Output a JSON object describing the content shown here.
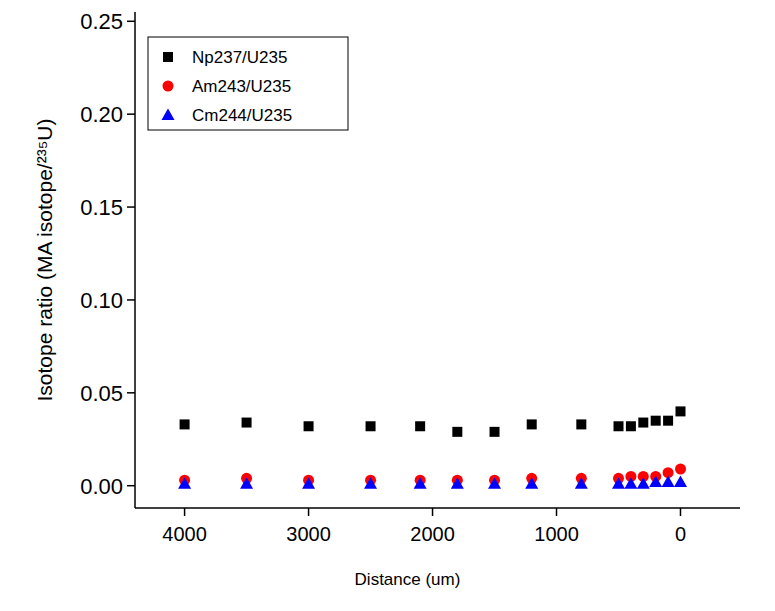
{
  "chart_data": {
    "type": "scatter",
    "x_label": "Distance (um)",
    "y_label": "Isotope ratio (MA isotope/²³⁵U)",
    "x": [
      4000,
      3500,
      3000,
      2500,
      2100,
      1800,
      1500,
      1200,
      800,
      500,
      400,
      300,
      200,
      100,
      0
    ],
    "series": [
      {
        "name": "Np237/U235",
        "color": "#000000",
        "marker": "square",
        "values": [
          0.033,
          0.034,
          0.032,
          0.032,
          0.032,
          0.029,
          0.029,
          0.033,
          0.033,
          0.032,
          0.032,
          0.034,
          0.035,
          0.035,
          0.04
        ]
      },
      {
        "name": "Am243/U235",
        "color": "#ff0000",
        "marker": "circle",
        "values": [
          0.003,
          0.004,
          0.003,
          0.003,
          0.003,
          0.003,
          0.003,
          0.004,
          0.004,
          0.004,
          0.005,
          0.005,
          0.005,
          0.007,
          0.009
        ]
      },
      {
        "name": "Cm244/U235",
        "color": "#0000ff",
        "marker": "triangle",
        "values": [
          0.001,
          0.001,
          0.001,
          0.001,
          0.001,
          0.001,
          0.001,
          0.001,
          0.001,
          0.001,
          0.001,
          0.001,
          0.002,
          0.002,
          0.002
        ]
      }
    ],
    "xlim": [
      4400,
      -480
    ],
    "xticks": [
      4000,
      3000,
      2000,
      1000,
      0
    ],
    "ylim": [
      -0.012,
      0.255
    ],
    "yticks": [
      {
        "value": 0,
        "label": "0.00"
      },
      {
        "value": 0.05,
        "label": "0.05"
      },
      {
        "value": 0.1,
        "label": "0.10"
      },
      {
        "value": 0.15,
        "label": "0.15"
      },
      {
        "value": 0.2,
        "label": "0.20"
      },
      {
        "value": 0.25,
        "label": "0.25"
      }
    ],
    "legend": "top-left",
    "grid": false
  }
}
